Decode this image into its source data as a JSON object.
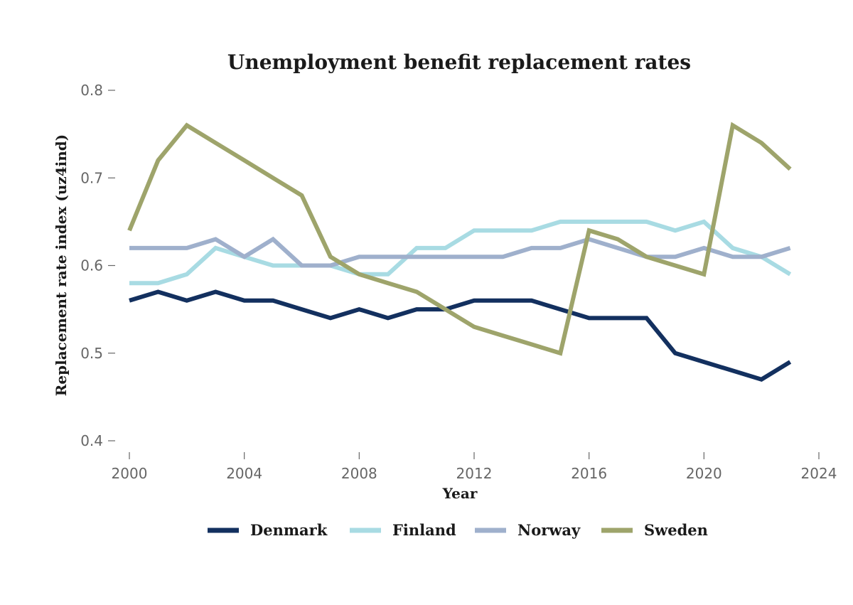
{
  "chart_data": {
    "type": "line",
    "title": "Unemployment benefit replacement rates",
    "xlabel": "Year",
    "ylabel": "Replacement rate index (uz4ind)",
    "xlim": [
      2000,
      2024
    ],
    "ylim": [
      0.4,
      0.8
    ],
    "xticks": [
      "2000",
      "2004",
      "2008",
      "2012",
      "2016",
      "2020",
      "2024"
    ],
    "yticks": [
      "0.4",
      "0.5",
      "0.6",
      "0.7",
      "0.8"
    ],
    "grid": false,
    "legend_position": "bottom",
    "x": [
      2000,
      2001,
      2002,
      2003,
      2004,
      2005,
      2006,
      2007,
      2008,
      2009,
      2010,
      2011,
      2012,
      2013,
      2014,
      2015,
      2016,
      2017,
      2018,
      2019,
      2020,
      2021,
      2022,
      2023
    ],
    "series": [
      {
        "name": "Denmark",
        "color": "#13305f",
        "values": [
          0.56,
          0.57,
          0.56,
          0.57,
          0.56,
          0.56,
          0.55,
          0.54,
          0.55,
          0.54,
          0.55,
          0.55,
          0.56,
          0.56,
          0.56,
          0.55,
          0.54,
          0.54,
          0.54,
          0.5,
          0.49,
          0.48,
          0.47,
          0.49
        ]
      },
      {
        "name": "Finland",
        "color": "#a8dbe3",
        "values": [
          0.58,
          0.58,
          0.59,
          0.62,
          0.61,
          0.6,
          0.6,
          0.6,
          0.59,
          0.59,
          0.62,
          0.62,
          0.64,
          0.64,
          0.64,
          0.65,
          0.65,
          0.65,
          0.65,
          0.64,
          0.65,
          0.62,
          0.61,
          0.59
        ]
      },
      {
        "name": "Norway",
        "color": "#9fb0cc",
        "values": [
          0.62,
          0.62,
          0.62,
          0.63,
          0.61,
          0.63,
          0.6,
          0.6,
          0.61,
          0.61,
          0.61,
          0.61,
          0.61,
          0.61,
          0.62,
          0.62,
          0.63,
          0.62,
          0.61,
          0.61,
          0.62,
          0.61,
          0.61,
          0.62
        ]
      },
      {
        "name": "Sweden",
        "color": "#9ea46b",
        "values": [
          0.64,
          0.72,
          0.76,
          0.74,
          0.72,
          0.7,
          0.68,
          0.61,
          0.59,
          0.58,
          0.57,
          0.55,
          0.53,
          0.52,
          0.51,
          0.5,
          0.64,
          0.63,
          0.61,
          0.6,
          0.59,
          0.76,
          0.74,
          0.71
        ]
      }
    ]
  }
}
